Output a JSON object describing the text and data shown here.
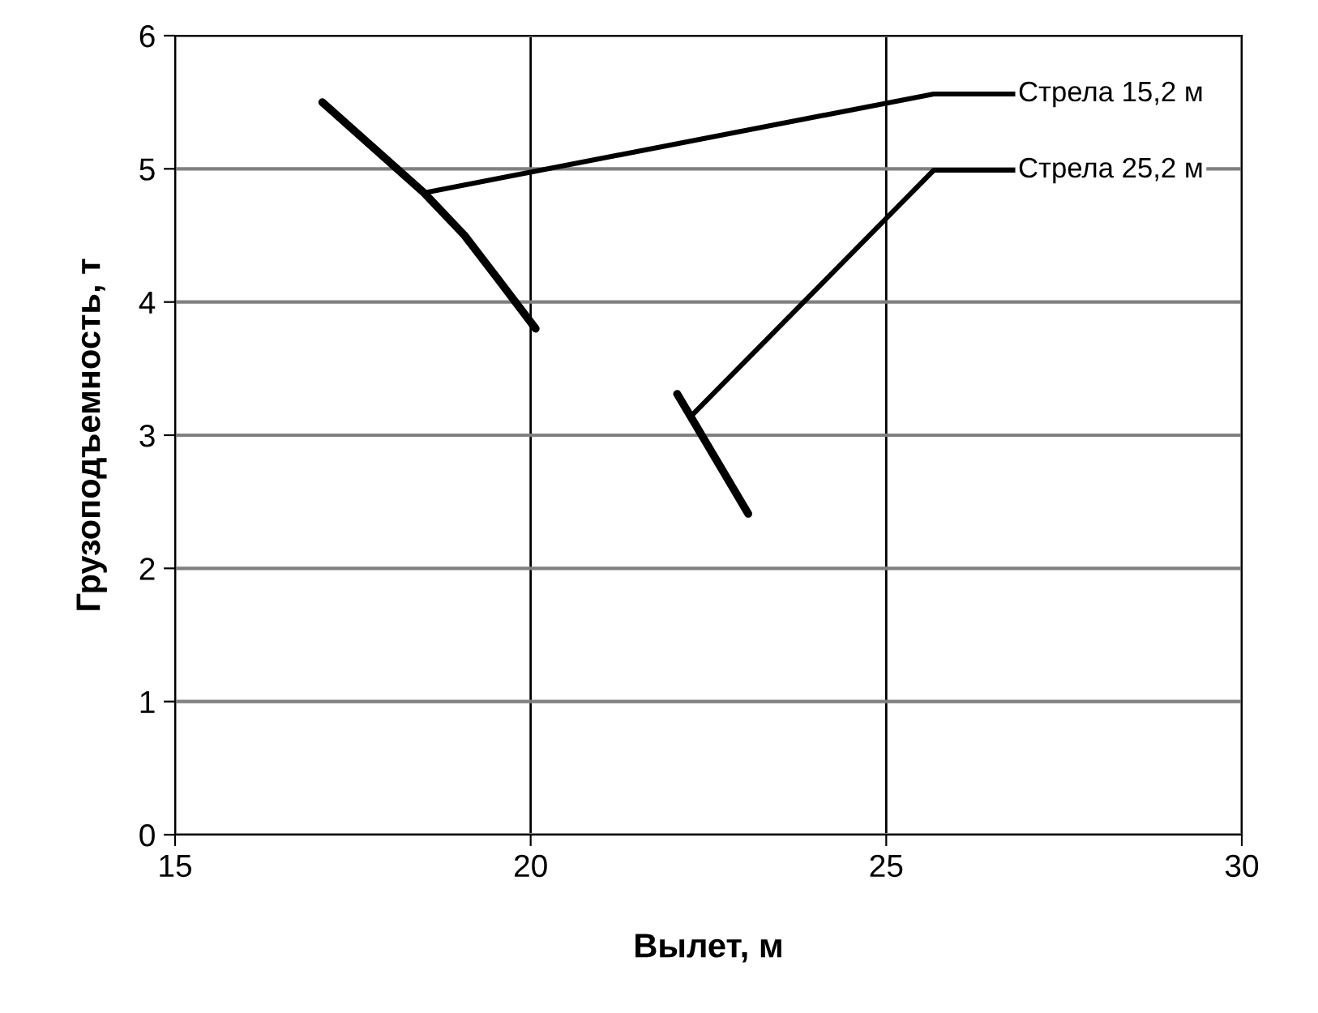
{
  "chart_data": {
    "type": "line",
    "xlabel": "Вылет, м",
    "ylabel": "Грузоподъемность, т",
    "xlim": [
      15,
      30
    ],
    "xticks": [
      15,
      20,
      25,
      30
    ],
    "ylim": [
      0,
      6
    ],
    "yticks": [
      0,
      1,
      2,
      3,
      4,
      5,
      6
    ],
    "grid": true,
    "marker": "none",
    "line_style": "solid",
    "annotations": [
      {
        "text": "Стрела 15,2 м",
        "x": 18.5,
        "y": 4.82
      },
      {
        "text": "Стрела 25,2 м",
        "x": 22.25,
        "y": 3.14
      }
    ],
    "series": [
      {
        "color": "#000000",
        "x": [
          17.07,
          18.5,
          19.07,
          19.53,
          20.07
        ],
        "values": [
          5.5,
          4.82,
          4.5,
          4.18,
          3.8
        ]
      },
      {
        "color": "#000000",
        "x": [
          22.06,
          22.25,
          23.06
        ],
        "values": [
          3.31,
          3.14,
          2.41
        ]
      }
    ]
  }
}
